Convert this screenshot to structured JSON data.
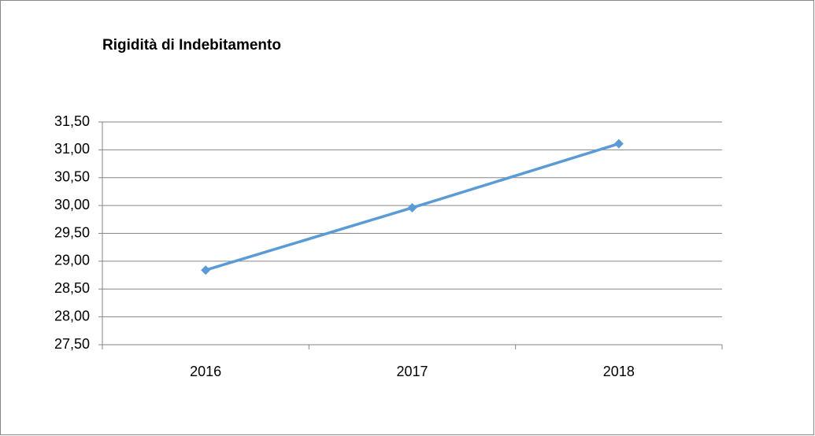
{
  "chart_data": {
    "type": "line",
    "title": "Rigidità di Indebitamento",
    "categories": [
      "2016",
      "2017",
      "2018"
    ],
    "series": [
      {
        "name": "Rigidità di Indebitamento",
        "color": "#5b9bd5",
        "values": [
          28.84,
          29.96,
          31.11
        ]
      }
    ],
    "ylim": [
      27.5,
      31.5
    ],
    "yticks": [
      {
        "value": 27.5,
        "label": "27,50"
      },
      {
        "value": 28,
        "label": "28,00"
      },
      {
        "value": 28.5,
        "label": "28,50"
      },
      {
        "value": 29,
        "label": "29,00"
      },
      {
        "value": 29.5,
        "label": "29,50"
      },
      {
        "value": 30,
        "label": "30,00"
      },
      {
        "value": 30.5,
        "label": "30,50"
      },
      {
        "value": 31,
        "label": "31,00"
      },
      {
        "value": 31.5,
        "label": "31,50"
      }
    ],
    "grid": true
  }
}
